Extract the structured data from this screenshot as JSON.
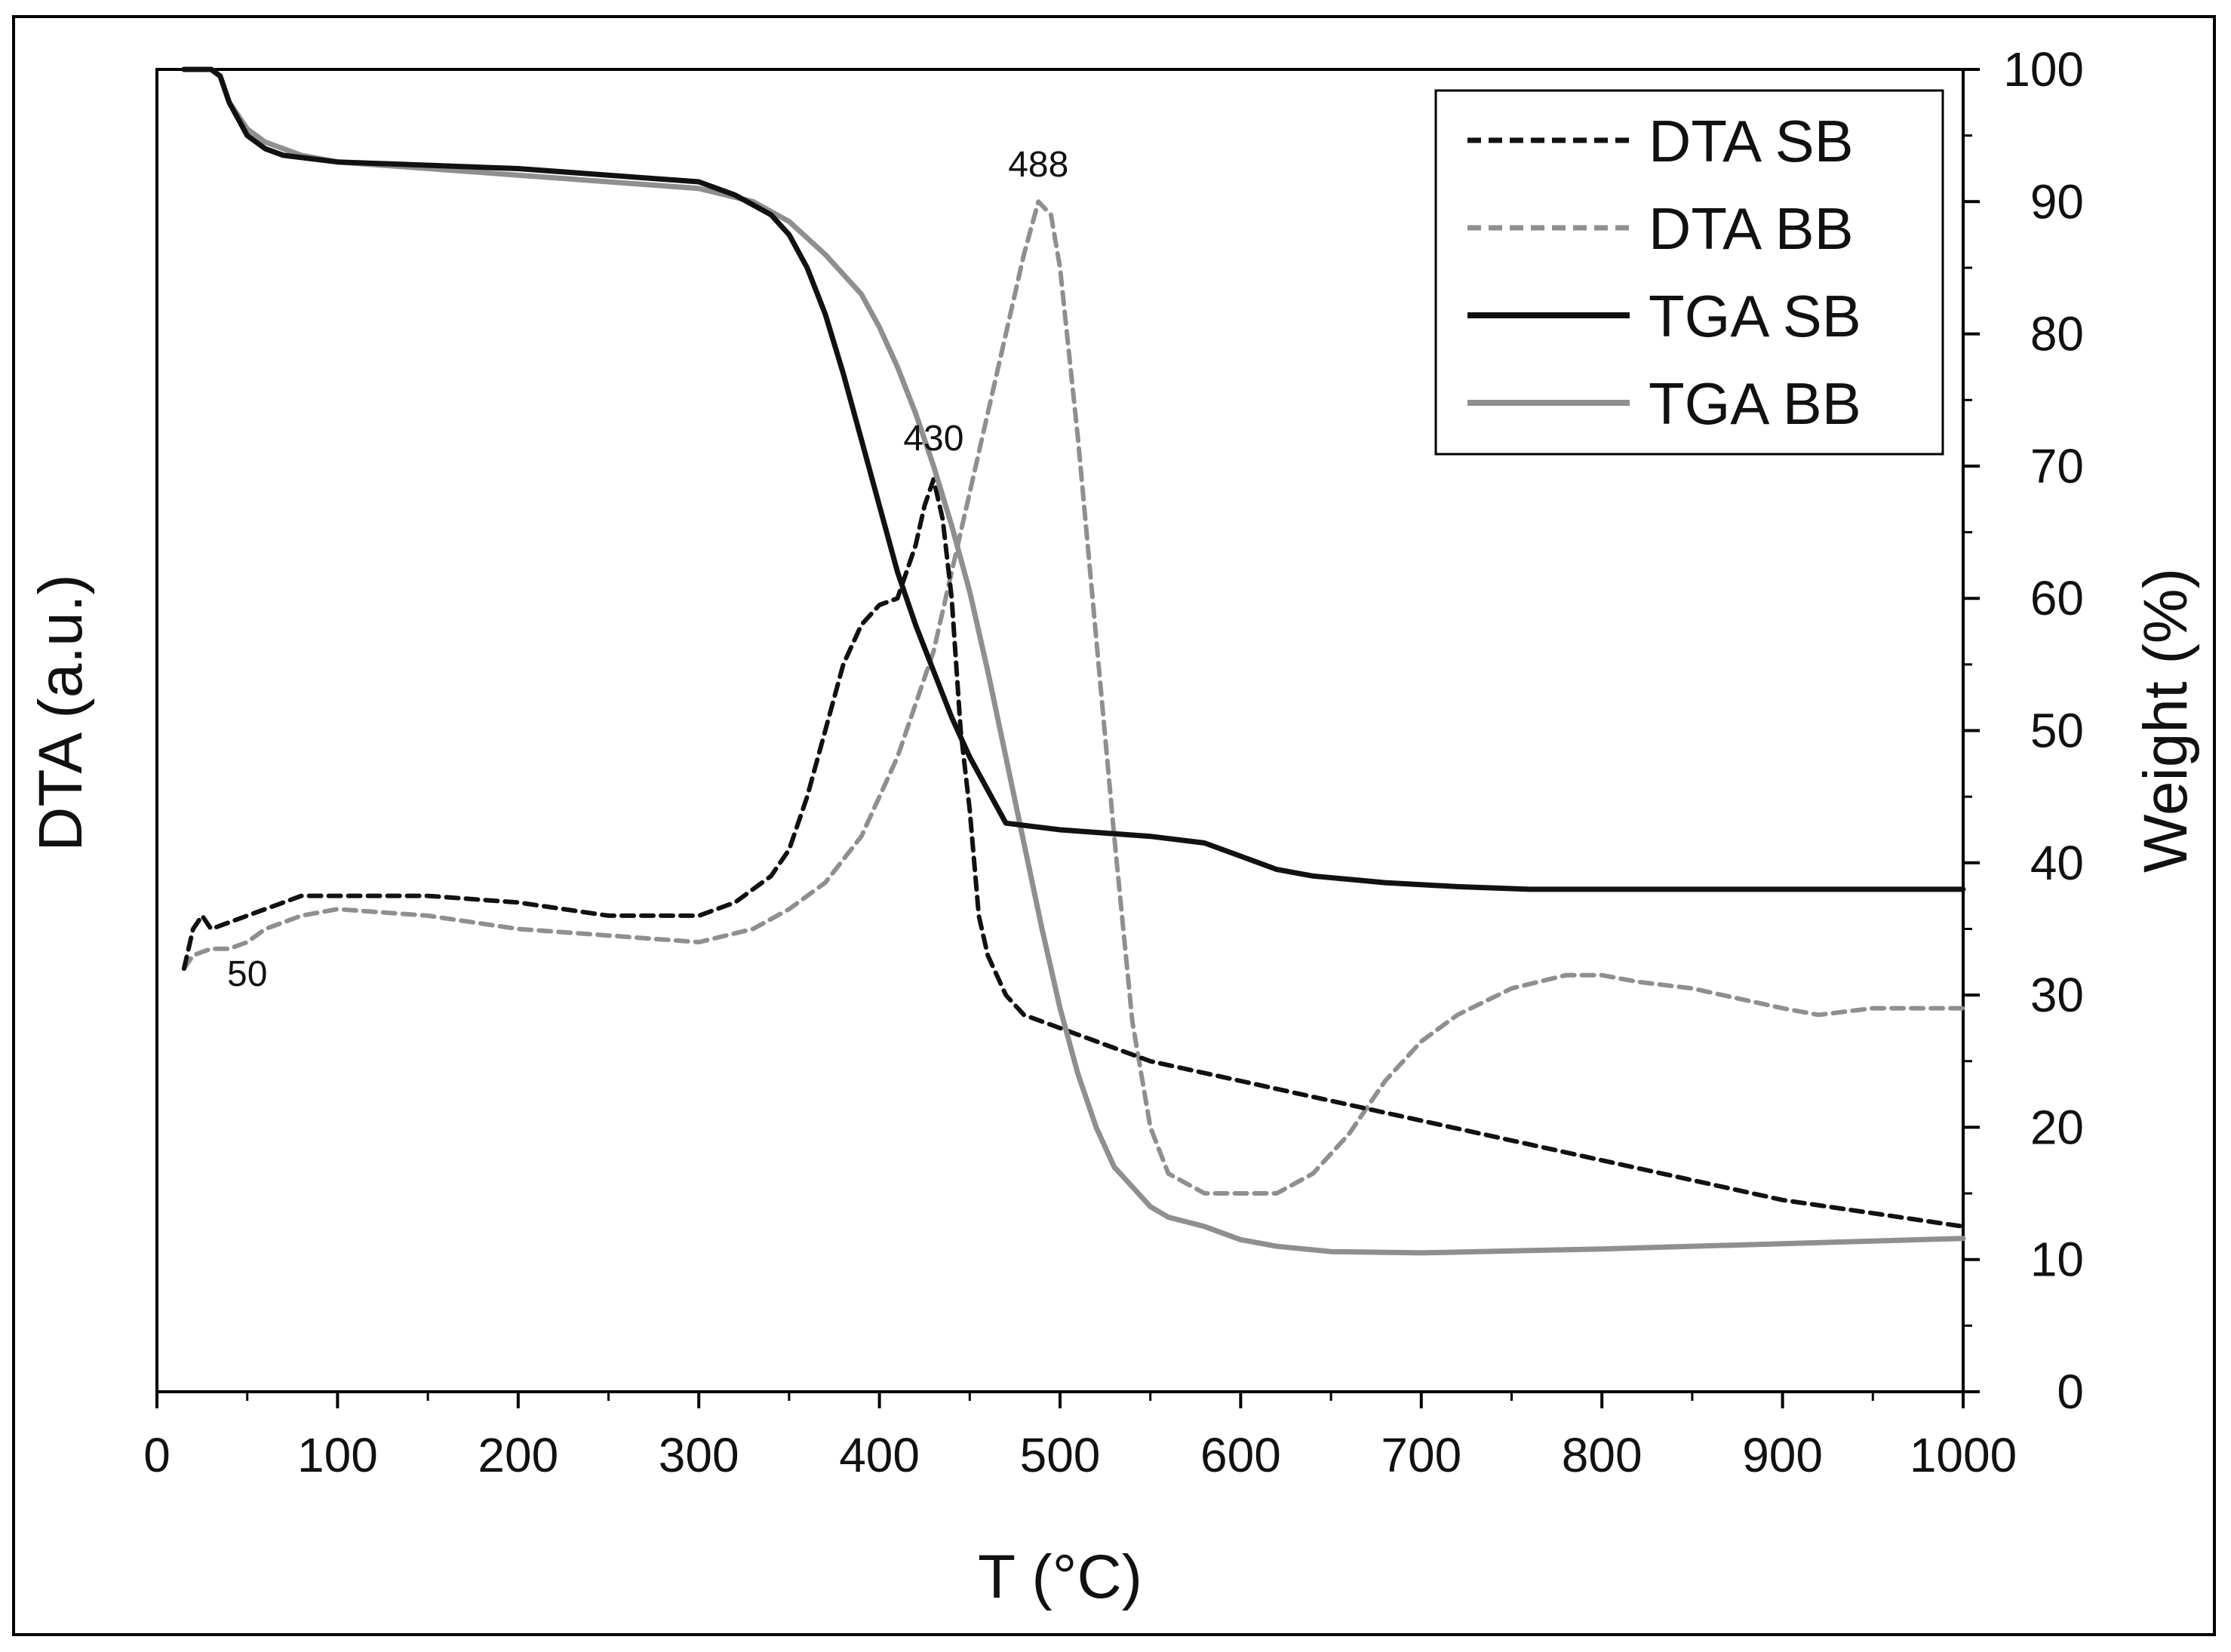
{
  "chart_data": {
    "type": "line",
    "title": "",
    "xlabel": "T (°C)",
    "ylabel_left": "DTA (a.u.)",
    "ylabel_right": "Weight (%)",
    "xlim": [
      0,
      1000
    ],
    "ylim_right": [
      0,
      100
    ],
    "x_ticks": [
      0,
      100,
      200,
      300,
      400,
      500,
      600,
      700,
      800,
      900,
      1000
    ],
    "y_right_ticks": [
      0,
      10,
      20,
      30,
      40,
      50,
      60,
      70,
      80,
      90,
      100
    ],
    "grid": false,
    "legend_position": "top-right",
    "annotations": [
      {
        "text": "50",
        "x": 50,
        "y": 30.7
      },
      {
        "text": "430",
        "x": 430,
        "y": 71.2
      },
      {
        "text": "488",
        "x": 488,
        "y": 91.9
      }
    ],
    "series": [
      {
        "name": "DTA SB",
        "style": "dashed",
        "color": "#111111",
        "axis": "left",
        "x": [
          15,
          20,
          25,
          30,
          40,
          50,
          60,
          70,
          80,
          90,
          100,
          120,
          150,
          200,
          250,
          300,
          320,
          340,
          350,
          360,
          370,
          380,
          390,
          400,
          410,
          415,
          420,
          425,
          430,
          435,
          440,
          445,
          450,
          455,
          460,
          470,
          480,
          490,
          500,
          550,
          600,
          650,
          700,
          750,
          800,
          850,
          900,
          950,
          1000
        ],
        "y": [
          32,
          35,
          36,
          35,
          35.5,
          36,
          36.5,
          37,
          37.5,
          37.5,
          37.5,
          37.5,
          37.5,
          37,
          36,
          36,
          37,
          39,
          41,
          45,
          50,
          55,
          58,
          59.5,
          60,
          62,
          64,
          67,
          69,
          66,
          60,
          50,
          44,
          36,
          33,
          30,
          28.5,
          28,
          27.5,
          25,
          23.5,
          22,
          20.5,
          19,
          17.5,
          16,
          14.5,
          13.5,
          12.5
        ]
      },
      {
        "name": "DTA BB",
        "style": "dashed",
        "color": "#8f8f8f",
        "axis": "left",
        "x": [
          15,
          20,
          30,
          40,
          50,
          60,
          80,
          100,
          150,
          200,
          250,
          300,
          330,
          350,
          370,
          390,
          400,
          410,
          420,
          430,
          440,
          450,
          460,
          470,
          480,
          488,
          495,
          500,
          510,
          520,
          530,
          540,
          550,
          560,
          580,
          600,
          620,
          640,
          660,
          680,
          700,
          720,
          750,
          780,
          800,
          820,
          850,
          900,
          920,
          950,
          1000
        ],
        "y": [
          32,
          33,
          33.5,
          33.5,
          34,
          35,
          36,
          36.5,
          36,
          35,
          34.5,
          34,
          35,
          36.5,
          38.5,
          42,
          45,
          48,
          52,
          56,
          62,
          68,
          74,
          80,
          86,
          90,
          89,
          85,
          72,
          57,
          42,
          28,
          20,
          16.5,
          15,
          15,
          15,
          16.5,
          19.5,
          23.5,
          26.5,
          28.5,
          30.5,
          31.5,
          31.5,
          31,
          30.5,
          29,
          28.5,
          29,
          29
        ]
      },
      {
        "name": "TGA SB",
        "style": "solid",
        "color": "#111111",
        "axis": "right",
        "x": [
          15,
          30,
          35,
          40,
          50,
          60,
          70,
          100,
          200,
          300,
          320,
          340,
          350,
          360,
          370,
          380,
          390,
          400,
          410,
          420,
          430,
          440,
          450,
          460,
          470,
          500,
          550,
          580,
          600,
          620,
          640,
          680,
          720,
          760,
          800,
          1000
        ],
        "y": [
          100,
          100,
          99.5,
          97.5,
          95,
          94,
          93.5,
          93,
          92.5,
          91.5,
          90.5,
          89,
          87.5,
          85,
          81.5,
          77,
          72,
          67,
          62,
          58,
          54.5,
          51,
          48,
          45.5,
          43,
          42.5,
          42,
          41.5,
          40.5,
          39.5,
          39,
          38.5,
          38.2,
          38,
          38,
          38
        ]
      },
      {
        "name": "TGA BB",
        "style": "solid",
        "color": "#8f8f8f",
        "axis": "right",
        "x": [
          15,
          30,
          35,
          40,
          50,
          60,
          80,
          100,
          200,
          300,
          330,
          350,
          370,
          390,
          400,
          410,
          420,
          430,
          440,
          450,
          460,
          470,
          480,
          490,
          500,
          510,
          520,
          530,
          540,
          550,
          560,
          580,
          600,
          620,
          650,
          700,
          800,
          900,
          1000
        ],
        "y": [
          100,
          100,
          99.5,
          97.5,
          95.5,
          94.5,
          93.5,
          93,
          92,
          91,
          90,
          88.5,
          86,
          83,
          80.5,
          77.5,
          74,
          70,
          65.5,
          60.5,
          54.5,
          48,
          41.5,
          35,
          29,
          24,
          20,
          17,
          15.5,
          14,
          13.2,
          12.5,
          11.5,
          11,
          10.6,
          10.5,
          10.8,
          11.2,
          11.6
        ]
      }
    ]
  }
}
